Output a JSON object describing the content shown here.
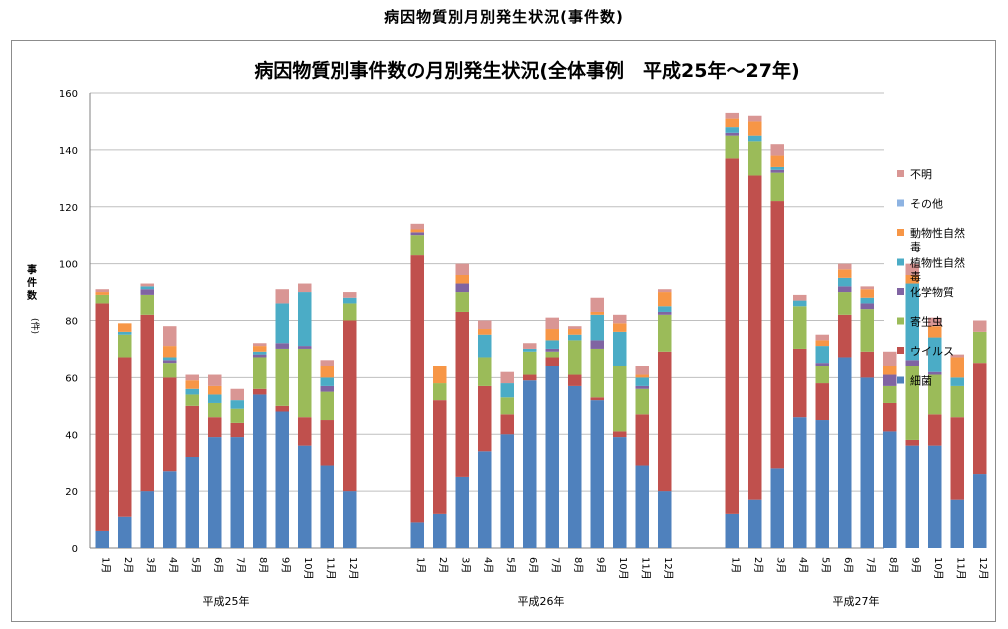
{
  "page_heading": "病因物質別月別発生状況(事件数)",
  "chart_data": {
    "type": "bar",
    "stacked": true,
    "title": "病因物質別事件数の月別発生状況(全体事例　平成25年〜27年)",
    "ylabel_main": "事件数",
    "ylabel_unit": "(件)",
    "ylim": [
      0,
      160
    ],
    "yticks": [
      0,
      20,
      40,
      60,
      80,
      100,
      120,
      140,
      160
    ],
    "grid": true,
    "legend_position": "right",
    "months": [
      "1月",
      "2月",
      "3月",
      "4月",
      "5月",
      "6月",
      "7月",
      "8月",
      "9月",
      "10月",
      "11月",
      "12月"
    ],
    "groups": [
      {
        "label": "平成25年"
      },
      {
        "label": "平成26年"
      },
      {
        "label": "平成27年"
      }
    ],
    "series": [
      {
        "name": "細菌",
        "color": "#4f81bd",
        "values": [
          [
            6,
            11,
            20,
            27,
            32,
            39,
            39,
            54,
            48,
            36,
            29,
            20
          ],
          [
            9,
            12,
            25,
            34,
            40,
            59,
            64,
            57,
            52,
            39,
            29,
            20
          ],
          [
            12,
            17,
            28,
            46,
            45,
            67,
            60,
            41,
            36,
            36,
            17,
            26
          ]
        ]
      },
      {
        "name": "ウイルス",
        "color": "#c0504d",
        "values": [
          [
            80,
            56,
            62,
            33,
            18,
            7,
            5,
            2,
            2,
            10,
            16,
            60
          ],
          [
            94,
            40,
            58,
            23,
            7,
            2,
            3,
            4,
            1,
            2,
            18,
            49
          ],
          [
            125,
            114,
            94,
            24,
            13,
            15,
            9,
            10,
            2,
            11,
            29,
            39
          ]
        ]
      },
      {
        "name": "寄生虫",
        "color": "#9bbb59",
        "values": [
          [
            3,
            8,
            7,
            5,
            4,
            5,
            5,
            11,
            20,
            24,
            10,
            6
          ],
          [
            7,
            6,
            7,
            10,
            6,
            8,
            2,
            12,
            17,
            23,
            9,
            13
          ],
          [
            8,
            12,
            10,
            15,
            6,
            8,
            15,
            6,
            26,
            14,
            11,
            11
          ]
        ]
      },
      {
        "name": "化学物質",
        "color": "#8064a2",
        "values": [
          [
            0,
            0,
            2,
            1,
            0,
            0,
            0,
            1,
            2,
            1,
            2,
            0
          ],
          [
            1,
            0,
            3,
            0,
            0,
            0,
            1,
            0,
            3,
            0,
            1,
            1
          ],
          [
            1,
            0,
            1,
            0,
            1,
            2,
            2,
            4,
            2,
            1,
            0,
            0
          ]
        ]
      },
      {
        "name": "植物性自然毒",
        "color": "#4bacc6",
        "values": [
          [
            0,
            1,
            1,
            1,
            2,
            3,
            3,
            1,
            14,
            19,
            3,
            2
          ],
          [
            0,
            0,
            0,
            8,
            5,
            1,
            3,
            2,
            9,
            12,
            3,
            2
          ],
          [
            2,
            2,
            1,
            2,
            6,
            3,
            2,
            0,
            27,
            12,
            3,
            0
          ]
        ]
      },
      {
        "name": "動物性自然毒",
        "color": "#f79646",
        "values": [
          [
            1,
            3,
            0,
            4,
            3,
            3,
            0,
            2,
            0,
            0,
            4,
            0
          ],
          [
            1,
            6,
            3,
            2,
            0,
            0,
            4,
            2,
            1,
            3,
            1,
            5
          ],
          [
            3,
            5,
            4,
            0,
            2,
            3,
            3,
            3,
            3,
            4,
            7,
            0
          ]
        ]
      },
      {
        "name": "その他",
        "color": "#8db3e2",
        "values": [
          [
            0,
            0,
            0,
            0,
            0,
            0,
            0,
            0,
            0,
            0,
            0,
            0
          ],
          [
            0,
            0,
            0,
            0,
            0,
            0,
            0,
            0,
            0,
            0,
            0,
            0
          ],
          [
            0,
            0,
            0,
            0,
            0,
            0,
            0,
            0,
            0,
            0,
            0,
            0
          ]
        ]
      },
      {
        "name": "不明",
        "color": "#d99694",
        "values": [
          [
            1,
            0,
            1,
            7,
            2,
            4,
            4,
            1,
            5,
            3,
            2,
            2
          ],
          [
            2,
            0,
            4,
            3,
            4,
            2,
            4,
            1,
            5,
            3,
            3,
            1
          ],
          [
            2,
            2,
            4,
            2,
            2,
            2,
            1,
            5,
            4,
            3,
            1,
            4
          ]
        ]
      }
    ]
  }
}
